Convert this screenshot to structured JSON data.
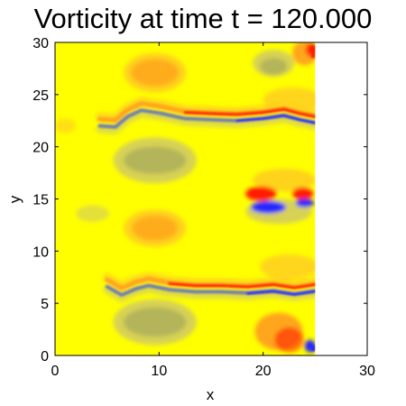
{
  "chart_data": {
    "type": "heatmap",
    "title": "Vorticity at time t = 120.000",
    "xlabel": "x",
    "ylabel": "y",
    "xlim": [
      0,
      30
    ],
    "ylim": [
      0,
      30
    ],
    "xticks": [
      0,
      10,
      20,
      30
    ],
    "yticks": [
      0,
      5,
      10,
      15,
      20,
      25,
      30
    ],
    "grid": false,
    "legend": "none",
    "field_extent": {
      "x": [
        0,
        25
      ],
      "y": [
        0,
        30
      ]
    },
    "colors": {
      "background_field": "#ffff00",
      "weak_positive": "#ffd21e",
      "moderate_positive": "#ffa61e",
      "strong_positive": "#ff1e00",
      "weak_negative": "#d7d254",
      "moderate_negative": "#b4b45a",
      "strong_negative": "#2828ff",
      "streak_negative": "#6f7fb0"
    },
    "features": [
      {
        "name": "upper jet",
        "x": [
          5,
          25
        ],
        "y": [
          21.5,
          24.0
        ],
        "sign": "mixed"
      },
      {
        "name": "lower jet",
        "x": [
          5,
          25
        ],
        "y": [
          5.5,
          8.0
        ],
        "sign": "mixed"
      },
      {
        "name": "mid-right dipole",
        "x": [
          18,
          25
        ],
        "y": [
          14.0,
          16.5
        ],
        "sign": "mixed"
      },
      {
        "name": "upper-left positive eddy",
        "x": [
          6.5,
          12.5
        ],
        "y": [
          25.0,
          29.0
        ],
        "sign": "positive"
      },
      {
        "name": "upper negative eddy",
        "x": [
          5.5,
          13.5
        ],
        "y": [
          16.5,
          21.0
        ],
        "sign": "negative"
      },
      {
        "name": "middle positive eddy",
        "x": [
          6.5,
          12.5
        ],
        "y": [
          10.5,
          14.0
        ],
        "sign": "positive"
      },
      {
        "name": "lower negative eddy",
        "x": [
          5.5,
          13.5
        ],
        "y": [
          1.0,
          5.5
        ],
        "sign": "negative"
      }
    ]
  }
}
